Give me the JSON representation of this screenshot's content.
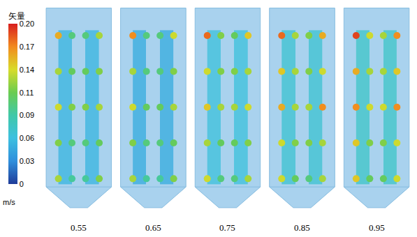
{
  "chart_data": {
    "type": "vector_field",
    "tick_labels": false,
    "colorbar": {
      "title": "矢量",
      "unit": "m/s",
      "range": [
        0,
        0.2
      ],
      "ticks": [
        0,
        {
          "value": 0.0286,
          "label": "0.03"
        },
        {
          "value": 0.0571,
          "label": "0.06"
        },
        {
          "value": 0.0857,
          "label": "0.09"
        },
        {
          "value": 0.1143,
          "label": "0.11"
        },
        {
          "value": 0.1429,
          "label": "0.14"
        },
        {
          "value": 0.1714,
          "label": "0.17"
        },
        {
          "value": 0.2,
          "label": "0.20"
        }
      ]
    },
    "panels": [
      {
        "label": "0.55",
        "bar_speed": 0.05,
        "jet_speed": [
          [
            0.16,
            0.1,
            0.1,
            0.13
          ],
          [
            0.13,
            0.11,
            0.11,
            0.12
          ],
          [
            0.14,
            0.12,
            0.12,
            0.13
          ],
          [
            0.12,
            0.1,
            0.1,
            0.11
          ],
          [
            0.13,
            0.09,
            0.09,
            0.12
          ]
        ]
      },
      {
        "label": "0.65",
        "bar_speed": 0.045,
        "jet_speed": [
          [
            0.17,
            0.1,
            0.1,
            0.14
          ],
          [
            0.13,
            0.1,
            0.1,
            0.12
          ],
          [
            0.14,
            0.11,
            0.11,
            0.13
          ],
          [
            0.12,
            0.1,
            0.1,
            0.11
          ],
          [
            0.13,
            0.09,
            0.09,
            0.12
          ]
        ]
      },
      {
        "label": "0.75",
        "bar_speed": 0.06,
        "jet_speed": [
          [
            0.18,
            0.12,
            0.11,
            0.15
          ],
          [
            0.14,
            0.12,
            0.12,
            0.13
          ],
          [
            0.15,
            0.13,
            0.13,
            0.14
          ],
          [
            0.13,
            0.11,
            0.11,
            0.12
          ],
          [
            0.14,
            0.1,
            0.1,
            0.13
          ]
        ]
      },
      {
        "label": "0.85",
        "bar_speed": 0.065,
        "jet_speed": [
          [
            0.18,
            0.13,
            0.12,
            0.16
          ],
          [
            0.15,
            0.13,
            0.12,
            0.14
          ],
          [
            0.16,
            0.13,
            0.13,
            0.17
          ],
          [
            0.14,
            0.12,
            0.12,
            0.13
          ],
          [
            0.14,
            0.11,
            0.1,
            0.13
          ]
        ]
      },
      {
        "label": "0.95",
        "bar_speed": 0.07,
        "jet_speed": [
          [
            0.19,
            0.14,
            0.13,
            0.17
          ],
          [
            0.16,
            0.13,
            0.13,
            0.15
          ],
          [
            0.17,
            0.14,
            0.14,
            0.17
          ],
          [
            0.15,
            0.12,
            0.12,
            0.14
          ],
          [
            0.15,
            0.11,
            0.11,
            0.14
          ]
        ]
      }
    ]
  }
}
